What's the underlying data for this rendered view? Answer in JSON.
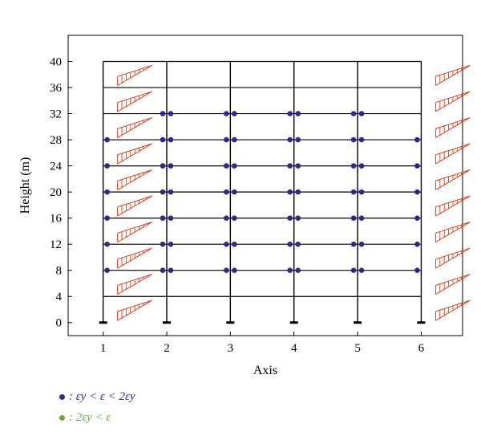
{
  "chart_data": {
    "type": "scatter",
    "title": "",
    "xlabel": "Axis",
    "ylabel": "Height (m)",
    "xlim": [
      0.45,
      6.65
    ],
    "ylim": [
      -2,
      44
    ],
    "xticks": [
      "1",
      "2",
      "3",
      "4",
      "5",
      "6"
    ],
    "yticks": [
      "0",
      "4",
      "8",
      "12",
      "16",
      "20",
      "24",
      "28",
      "32",
      "36",
      "40"
    ],
    "grid": false,
    "legend_placement": "bottom-left",
    "frame": {
      "columns": [
        1,
        2,
        3,
        4,
        5,
        6
      ],
      "floor_levels": [
        4,
        8,
        12,
        16,
        20,
        24,
        28,
        32,
        36,
        40
      ],
      "column_top": 40,
      "base": 0,
      "base_supports": [
        1,
        2,
        3,
        4,
        5,
        6
      ]
    },
    "drift_profiles": {
      "columns": [
        1,
        6
      ],
      "storey_levels": [
        0,
        4,
        8,
        12,
        16,
        20,
        24,
        28,
        32,
        36
      ]
    },
    "series": [
      {
        "name": ": εy < ε < 2εy",
        "color": "#2b2a8c",
        "points": [
          [
            1,
            8
          ],
          [
            1,
            12
          ],
          [
            1,
            16
          ],
          [
            1,
            20
          ],
          [
            1,
            24
          ],
          [
            1,
            28
          ],
          [
            2,
            8
          ],
          [
            2,
            12
          ],
          [
            2,
            16
          ],
          [
            2,
            20
          ],
          [
            2,
            24
          ],
          [
            2,
            28
          ],
          [
            2,
            32
          ],
          [
            3,
            8
          ],
          [
            3,
            12
          ],
          [
            3,
            16
          ],
          [
            3,
            20
          ],
          [
            3,
            24
          ],
          [
            3,
            28
          ],
          [
            3,
            32
          ],
          [
            4,
            8
          ],
          [
            4,
            12
          ],
          [
            4,
            16
          ],
          [
            4,
            20
          ],
          [
            4,
            24
          ],
          [
            4,
            28
          ],
          [
            4,
            32
          ],
          [
            5,
            8
          ],
          [
            5,
            12
          ],
          [
            5,
            16
          ],
          [
            5,
            20
          ],
          [
            5,
            24
          ],
          [
            5,
            28
          ],
          [
            5,
            32
          ],
          [
            6,
            8
          ],
          [
            6,
            12
          ],
          [
            6,
            16
          ],
          [
            6,
            20
          ],
          [
            6,
            24
          ],
          [
            6,
            28
          ]
        ]
      },
      {
        "name": ": 2εy < ε",
        "color": "#6aaa3a",
        "points": []
      }
    ]
  },
  "colors": {
    "frame": "#000000",
    "profile": "#d9401c",
    "legend_marker_1": "#2b2a8c",
    "legend_marker_2": "#6aaa3a"
  }
}
